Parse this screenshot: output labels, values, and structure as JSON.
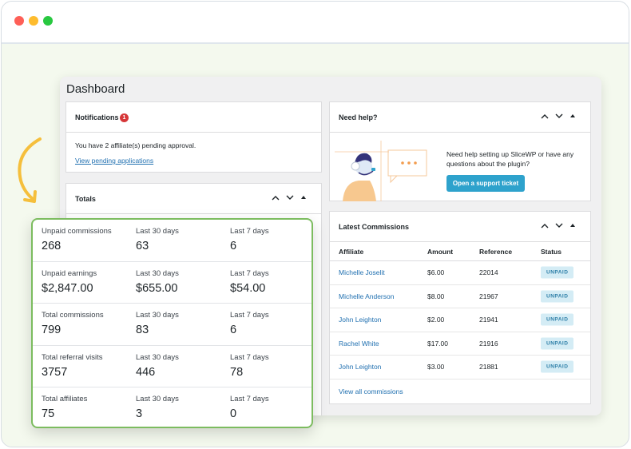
{
  "window": {
    "controls": [
      "close",
      "minimize",
      "maximize"
    ]
  },
  "dashboard": {
    "title": "Dashboard",
    "notifications": {
      "title": "Notifications",
      "count": "1",
      "message": "You have 2 affiliate(s) pending approval.",
      "link": "View pending applications"
    },
    "totals": {
      "title": "Totals"
    },
    "help": {
      "title": "Need help?",
      "text": "Need help setting up SliceWP or have any questions about the plugin?",
      "button": "Open a support ticket"
    },
    "latest": {
      "title": "Latest Commissions",
      "columns": [
        "Affiliate",
        "Amount",
        "Reference",
        "Status"
      ],
      "rows": [
        {
          "affiliate": "Michelle Joselit",
          "amount": "$6.00",
          "reference": "22014",
          "status": "UNPAID"
        },
        {
          "affiliate": "Michelle Anderson",
          "amount": "$8.00",
          "reference": "21967",
          "status": "UNPAID"
        },
        {
          "affiliate": "John Leighton",
          "amount": "$2.00",
          "reference": "21941",
          "status": "UNPAID"
        },
        {
          "affiliate": "Rachel White",
          "amount": "$17.00",
          "reference": "21916",
          "status": "UNPAID"
        },
        {
          "affiliate": "John Leighton",
          "amount": "$3.00",
          "reference": "21881",
          "status": "UNPAID"
        }
      ],
      "view_all": "View all commissions"
    }
  },
  "totals_overlay": {
    "rows": [
      {
        "label": "Unpaid commissions",
        "value": "268",
        "l30_label": "Last 30 days",
        "l30": "63",
        "l7_label": "Last 7 days",
        "l7": "6"
      },
      {
        "label": "Unpaid earnings",
        "value": "$2,847.00",
        "l30_label": "Last 30 days",
        "l30": "$655.00",
        "l7_label": "Last 7 days",
        "l7": "$54.00"
      },
      {
        "label": "Total commissions",
        "value": "799",
        "l30_label": "Last 30 days",
        "l30": "83",
        "l7_label": "Last 7 days",
        "l7": "6"
      },
      {
        "label": "Total referral visits",
        "value": "3757",
        "l30_label": "Last 30 days",
        "l30": "446",
        "l7_label": "Last 7 days",
        "l7": "78"
      },
      {
        "label": "Total affiliates",
        "value": "75",
        "l30_label": "Last 30 days",
        "l30": "3",
        "l7_label": "Last 7 days",
        "l7": "0"
      }
    ]
  },
  "colors": {
    "accent_blue": "#2271b1",
    "button_blue": "#2ea2cc",
    "highlight_green": "#7cbc5f",
    "badge_red": "#d63638",
    "arrow_yellow": "#f5bf3c"
  },
  "icons": [
    "chevron-up-icon",
    "chevron-down-icon",
    "triangle-up-icon",
    "curved-arrow-icon",
    "support-agent-illustration"
  ]
}
